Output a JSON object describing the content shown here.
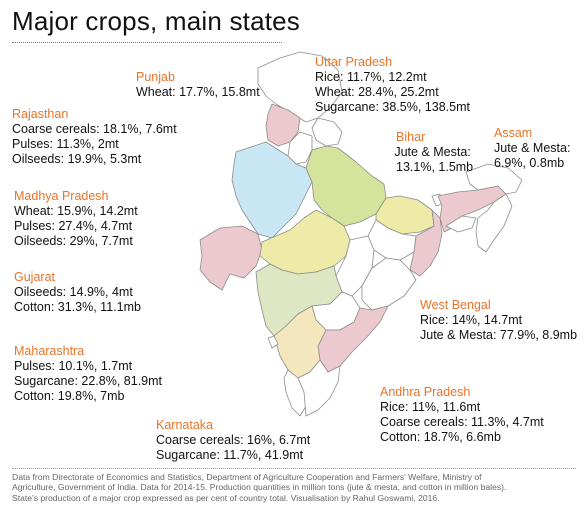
{
  "title": "Major crops, main states",
  "states": {
    "punjab": {
      "name": "Punjab",
      "lines": [
        "Wheat: 17.7%, 15.8mt"
      ]
    },
    "rajasthan": {
      "name": "Rajasthan",
      "lines": [
        "Coarse cereals: 18.1%, 7.6mt",
        "Pulses: 11.3%, 2mt",
        "Oilseeds: 19.9%, 5.3mt"
      ]
    },
    "madhya_pradesh": {
      "name": "Madhya Pradesh",
      "lines": [
        "Wheat: 15.9%, 14.2mt",
        "Pulses: 27.4%, 4.7mt",
        "Oilseeds: 29%, 7.7mt"
      ]
    },
    "gujarat": {
      "name": "Gujarat",
      "lines": [
        "Oilseeds: 14.9%, 4mt",
        "Cotton: 31.3%, 11.1mb"
      ]
    },
    "maharashtra": {
      "name": "Maharashtra",
      "lines": [
        "Pulses: 10.1%, 1.7mt",
        "Sugarcane: 22.8%, 81.9mt",
        "Cotton: 19.8%, 7mb"
      ]
    },
    "karnataka": {
      "name": "Karnataka",
      "lines": [
        "Coarse cereals: 16%, 6.7mt",
        "Sugarcane: 11.7%, 41.9mt"
      ]
    },
    "uttar_pradesh": {
      "name": "Uttar Pradesh",
      "lines": [
        "Rice: 11.7%, 12.2mt",
        "Wheat: 28.4%, 25.2mt",
        "Sugarcane: 38.5%, 138.5mt"
      ]
    },
    "bihar": {
      "name": "Bihar",
      "lines": [
        "Jute & Mesta:",
        "13.1%, 1.5mb"
      ]
    },
    "assam": {
      "name": "Assam",
      "lines": [
        "Jute & Mesta:",
        "6.9%, 0.8mb"
      ]
    },
    "west_bengal": {
      "name": "West Bengal",
      "lines": [
        "Rice: 14%, 14.7mt",
        "Jute & Mesta: 77.9%, 8.9mb"
      ]
    },
    "andhra_pradesh": {
      "name": "Andhra Pradesh",
      "lines": [
        "Rice: 11%, 11.6mt",
        "Coarse cereals: 11.3%, 4.7mt",
        "Cotton: 18.7%, 6.6mb"
      ]
    }
  },
  "fill_colors": {
    "punjab": "#ecc9cf",
    "rajasthan": "#c8e6f4",
    "madhya_pradesh": "#eeeaa8",
    "gujarat": "#ecc9cf",
    "maharashtra": "#dde7c3",
    "karnataka": "#ecc9cf",
    "uttar_pradesh": "#d5e49c",
    "bihar": "#eeeaa8",
    "assam": "#ecc9cf",
    "west_bengal": "#ecc9cf",
    "andhra_pradesh": "#f4e6bd",
    "other": "#ffffff",
    "border": "#8c8c8c",
    "state_name": "#e8742a"
  },
  "footer": [
    "Data from Directorate of Economics and Statistics, Department of Agriculture Cooperation and Farmers' Welfare, Ministry of",
    "Agriculture, Government of India. Data for 2014-15. Production quantities in million tons (jute & mesta, and cotton in million bales).",
    "State's production of a major crop expressed as per cent of country total. Visualisation by Rahul Goswami, 2016."
  ]
}
